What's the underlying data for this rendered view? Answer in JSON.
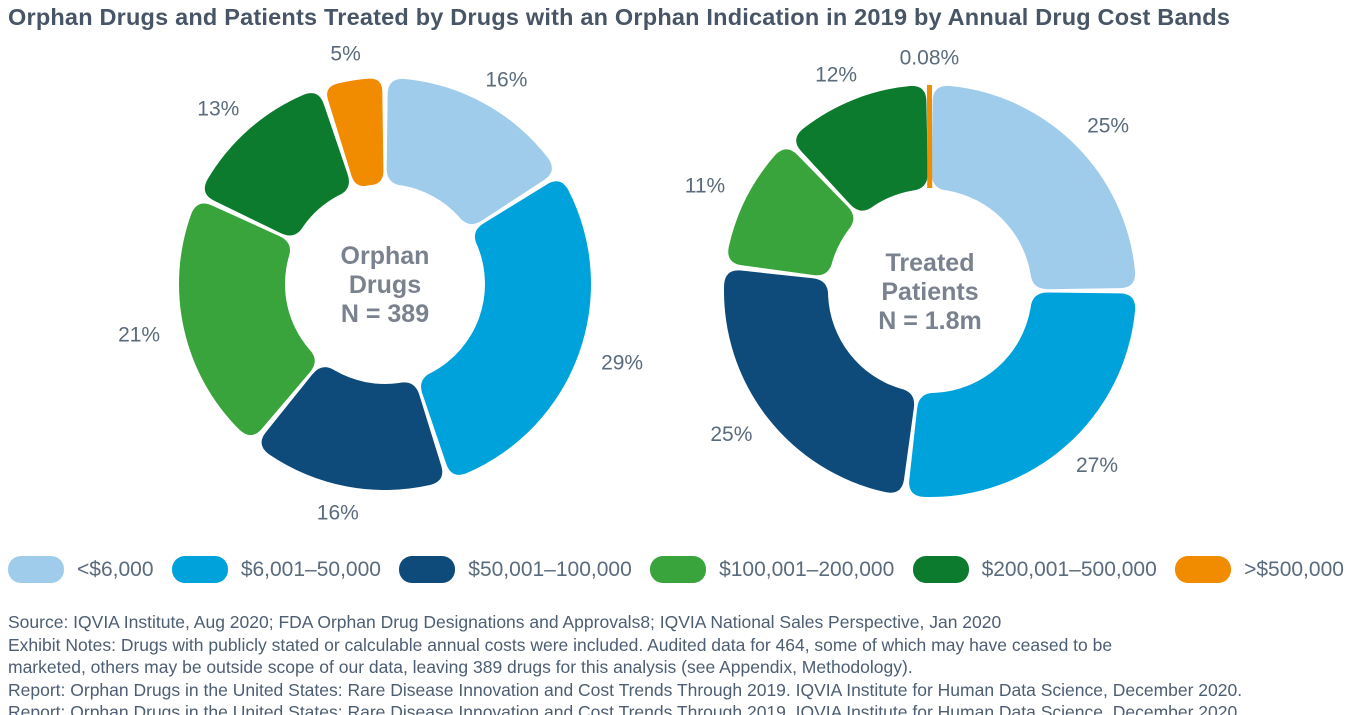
{
  "title": "Orphan Drugs and Patients Treated by Drugs with an Orphan Indication in 2019 by Annual Drug Cost Bands",
  "colors": {
    "band_lt_6000": "#A0CCEC",
    "band_6001_50000": "#00A2DC",
    "band_50001_100000": "#0E4B7A",
    "band_100001_200000": "#39A43B",
    "band_200001_500000": "#0C7B2D",
    "band_gt_500000": "#F18B00",
    "title_text": "#475566",
    "segment_label_text": "#5A6B7D",
    "center_label_text": "#7A828F",
    "footer_text": "#4D5E73"
  },
  "chart_data": [
    {
      "type": "pie",
      "subtype": "donut",
      "name": "orphan-drugs-donut",
      "center_label_lines": [
        "Orphan",
        "Drugs",
        "N = 389"
      ],
      "n_total": "N = 389",
      "categories": [
        "<$6,000",
        "$6,001–50,000",
        "$50,001–100,000",
        "$100,001–200,000",
        "$200,001–500,000",
        ">$500,000"
      ],
      "values": [
        16,
        29,
        16,
        21,
        13,
        5
      ],
      "labels": [
        "16%",
        "29%",
        "16%",
        "21%",
        "13%",
        "5%"
      ],
      "colors": [
        "#A0CCEC",
        "#00A2DC",
        "#0E4B7A",
        "#39A43B",
        "#0C7B2D",
        "#F18B00"
      ],
      "start_angle_deg": 0,
      "direction": "clockwise",
      "legend_position": "bottom"
    },
    {
      "type": "pie",
      "subtype": "donut",
      "name": "treated-patients-donut",
      "center_label_lines": [
        "Treated",
        "Patients",
        "N = 1.8m"
      ],
      "n_total": "N = 1.8m",
      "categories": [
        "<$6,000",
        "$6,001–50,000",
        "$50,001–100,000",
        "$100,001–200,000",
        "$200,001–500,000",
        ">$500,000"
      ],
      "values": [
        25,
        27,
        25,
        11,
        12,
        0.08
      ],
      "labels": [
        "25%",
        "27%",
        "25%",
        "11%",
        "12%",
        "0.08%"
      ],
      "colors": [
        "#A0CCEC",
        "#00A2DC",
        "#0E4B7A",
        "#39A43B",
        "#0C7B2D",
        "#F18B00"
      ],
      "start_angle_deg": 0,
      "direction": "clockwise",
      "legend_position": "bottom"
    }
  ],
  "legend": {
    "items": [
      {
        "label": "<$6,000",
        "color": "#A0CCEC"
      },
      {
        "label": "$6,001–50,000",
        "color": "#00A2DC"
      },
      {
        "label": "$50,001–100,000",
        "color": "#0E4B7A"
      },
      {
        "label": "$100,001–200,000",
        "color": "#39A43B"
      },
      {
        "label": "$200,001–500,000",
        "color": "#0C7B2D"
      },
      {
        "label": ">$500,000",
        "color": "#F18B00"
      }
    ]
  },
  "footer": {
    "source": "Source: IQVIA Institute, Aug 2020; FDA Orphan Drug Designations and Approvals8; IQVIA National Sales Perspective, Jan 2020",
    "exhibit_notes": [
      "Exhibit Notes: Drugs with publicly stated or calculable annual costs were included. Audited data for 464, some of which may have ceased to be",
      "marketed, others may be outside scope of our data, leaving 389 drugs for this analysis (see Appendix, Methodology)."
    ],
    "report": "Report: Orphan Drugs in the United States: Rare Disease Innovation and Cost Trends Through 2019. IQVIA Institute for Human Data Science, December 2020."
  }
}
